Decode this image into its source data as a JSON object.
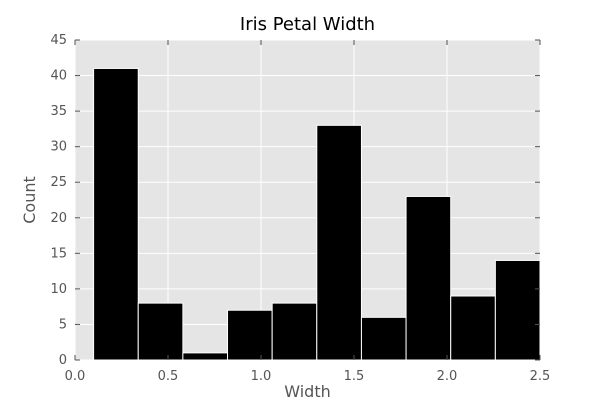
{
  "chart_data": {
    "type": "bar",
    "title": "Iris Petal Width",
    "xlabel": "Width",
    "ylabel": "Count",
    "xlim": [
      0.0,
      2.5
    ],
    "ylim": [
      0,
      45
    ],
    "grid": true,
    "bin_edges": [
      0.1,
      0.34,
      0.58,
      0.82,
      1.06,
      1.3,
      1.54,
      1.78,
      2.02,
      2.26,
      2.5
    ],
    "values": [
      41,
      8,
      1,
      7,
      8,
      33,
      6,
      23,
      9,
      14
    ],
    "x_ticks": [
      "0.0",
      "0.5",
      "1.0",
      "1.5",
      "2.0",
      "2.5"
    ],
    "y_ticks": [
      "0",
      "5",
      "10",
      "15",
      "20",
      "25",
      "30",
      "35",
      "40",
      "45"
    ],
    "colors": {
      "bar": "#000000",
      "bar_edge": "#ffffff",
      "plot_bg": "#e5e5e5",
      "grid": "#ffffff"
    }
  }
}
